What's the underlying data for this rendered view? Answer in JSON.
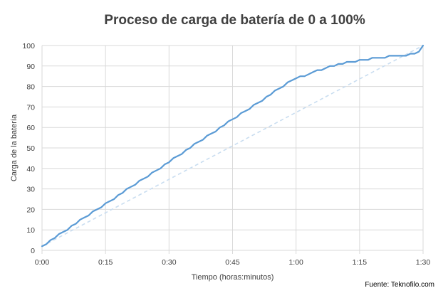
{
  "source_note": "Fuente: Teknofilo.com",
  "colors": {
    "series": "#5B9BD5",
    "reference": "#C9DDF0",
    "grid": "#D9D9D9",
    "text": "#404040"
  },
  "chart_data": {
    "type": "line",
    "title": "Proceso de carga de batería de 0 a 100%",
    "xlabel": "Tiempo (horas:minutos)",
    "ylabel": "Carga de la batería",
    "x_unit": "minutes",
    "xlim": [
      0,
      90
    ],
    "ylim": [
      0,
      100
    ],
    "x_ticks": [
      {
        "value": 0,
        "label": "0:00"
      },
      {
        "value": 15,
        "label": "0:15"
      },
      {
        "value": 30,
        "label": "0:30"
      },
      {
        "value": 45,
        "label": "0:45"
      },
      {
        "value": 60,
        "label": "1:00"
      },
      {
        "value": 75,
        "label": "1:15"
      },
      {
        "value": 90,
        "label": "1:30"
      }
    ],
    "y_ticks": [
      0,
      10,
      20,
      30,
      40,
      50,
      60,
      70,
      80,
      90,
      100
    ],
    "grid": "vertical and horizontal",
    "legend": "none",
    "series": [
      {
        "style": "solid",
        "x": [
          0,
          1,
          2,
          3,
          4,
          5,
          6,
          7,
          8,
          9,
          10,
          11,
          12,
          13,
          14,
          15,
          16,
          17,
          18,
          19,
          20,
          21,
          22,
          23,
          24,
          25,
          26,
          27,
          28,
          29,
          30,
          31,
          32,
          33,
          34,
          35,
          36,
          37,
          38,
          39,
          40,
          41,
          42,
          43,
          44,
          45,
          46,
          47,
          48,
          49,
          50,
          51,
          52,
          53,
          54,
          55,
          56,
          57,
          58,
          59,
          60,
          61,
          62,
          63,
          64,
          65,
          66,
          67,
          68,
          69,
          70,
          71,
          72,
          73,
          74,
          75,
          76,
          77,
          78,
          79,
          80,
          81,
          82,
          83,
          84,
          85,
          86,
          87,
          88,
          89,
          90
        ],
        "y": [
          2,
          3,
          5,
          6,
          8,
          9,
          10,
          12,
          13,
          15,
          16,
          17,
          19,
          20,
          21,
          23,
          24,
          25,
          27,
          28,
          30,
          31,
          32,
          34,
          35,
          36,
          38,
          39,
          40,
          42,
          43,
          45,
          46,
          47,
          49,
          50,
          52,
          53,
          54,
          56,
          57,
          58,
          60,
          61,
          63,
          64,
          65,
          67,
          68,
          69,
          71,
          72,
          73,
          75,
          76,
          78,
          79,
          80,
          82,
          83,
          84,
          85,
          85,
          86,
          87,
          88,
          88,
          89,
          90,
          90,
          91,
          91,
          92,
          92,
          92,
          93,
          93,
          93,
          94,
          94,
          94,
          94,
          95,
          95,
          95,
          95,
          95,
          96,
          96,
          97,
          100
        ]
      },
      {
        "style": "dashed",
        "x": [
          0,
          90
        ],
        "y": [
          2,
          100
        ]
      }
    ]
  }
}
